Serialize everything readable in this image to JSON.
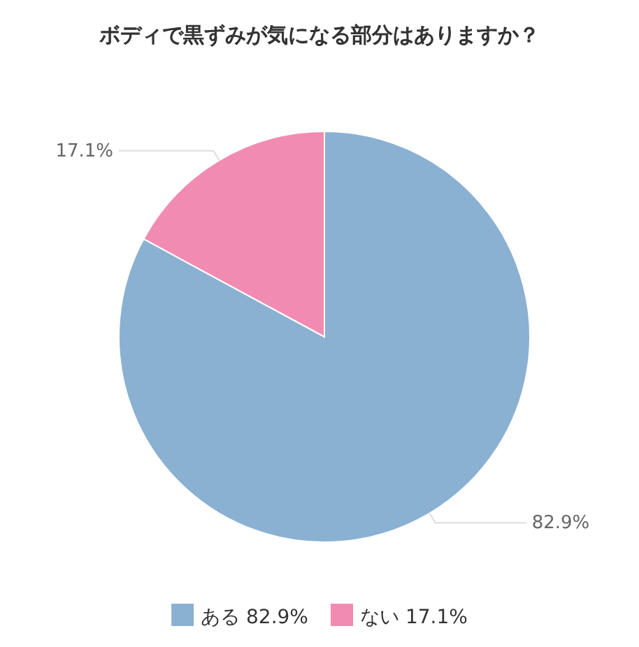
{
  "chart_data": {
    "type": "pie",
    "title": "ボディで黒ずみが気になる部分はありますか？",
    "categories": [
      "ある",
      "ない"
    ],
    "values": [
      82.9,
      17.1
    ],
    "colors": [
      "#8ab1d2",
      "#f28bb2"
    ],
    "value_labels": [
      "82.9%",
      "17.1%"
    ],
    "legend": "bottom"
  }
}
